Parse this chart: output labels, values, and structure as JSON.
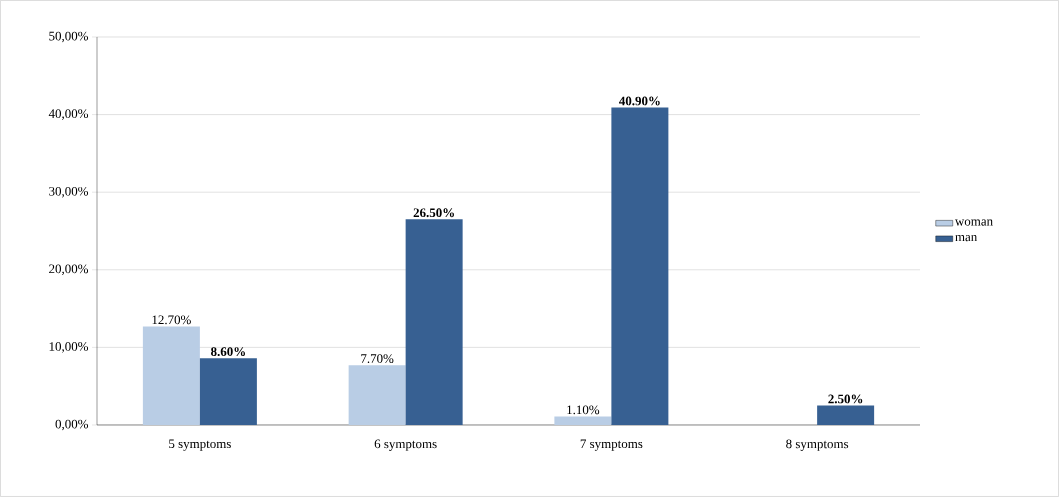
{
  "chart_data": {
    "type": "bar",
    "categories": [
      "5 symptoms",
      "6 symptoms",
      "7 symptoms",
      "8 symptoms"
    ],
    "series": [
      {
        "name": "woman",
        "color": "#b9cde5",
        "values": [
          12.7,
          7.7,
          1.1,
          null
        ],
        "value_labels": [
          "12.70%",
          "7.70%",
          "1.10%",
          null
        ]
      },
      {
        "name": "man",
        "color": "#376092",
        "values": [
          8.6,
          26.5,
          40.9,
          2.5
        ],
        "value_labels": [
          "**8.60%**",
          "**26.50%**",
          "**40.90%**",
          "**2.50%**"
        ]
      }
    ],
    "ylim": [
      0,
      50
    ],
    "yticks": [
      {
        "value": 0,
        "label": "0,00%"
      },
      {
        "value": 10,
        "label": "10,00%"
      },
      {
        "value": 20,
        "label": "20,00%"
      },
      {
        "value": 30,
        "label": "30,00%"
      },
      {
        "value": 40,
        "label": "40,00%"
      },
      {
        "value": 50,
        "label": "50,00%"
      }
    ],
    "grid": "y",
    "legend": "right"
  }
}
